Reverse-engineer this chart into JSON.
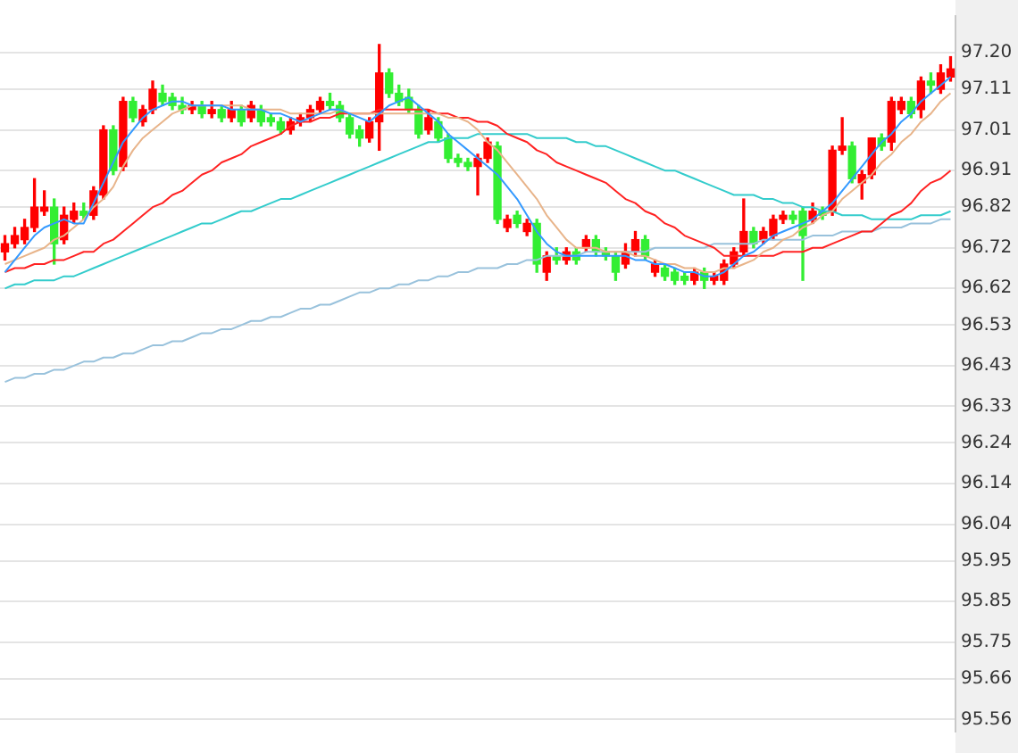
{
  "chart_data": {
    "type": "candlestick",
    "categories": [
      null,
      null,
      null,
      null,
      null,
      null,
      null,
      null,
      null,
      null,
      null,
      null,
      null,
      null,
      null,
      null,
      null,
      null,
      null,
      null,
      null,
      null,
      null,
      null,
      null,
      null,
      null,
      null,
      null,
      null,
      null,
      null,
      null,
      null,
      null,
      null,
      null,
      null,
      null,
      null,
      null,
      null,
      null,
      null,
      null,
      null,
      null,
      null,
      null,
      null,
      null,
      null,
      null,
      null,
      null,
      null,
      null,
      null,
      null,
      null,
      null,
      null,
      null,
      null,
      null,
      null,
      null,
      null,
      null,
      null,
      null,
      null,
      null,
      null,
      null,
      null,
      null,
      null,
      null,
      null,
      null,
      null,
      null,
      null,
      null,
      null,
      null,
      null,
      null,
      null,
      null,
      null,
      null,
      null,
      null,
      null,
      null
    ],
    "ohlc": [
      [
        96.71,
        96.75,
        96.69,
        96.73
      ],
      [
        96.73,
        96.77,
        96.72,
        96.75
      ],
      [
        96.74,
        96.79,
        96.73,
        96.77
      ],
      [
        96.77,
        96.89,
        96.76,
        96.82
      ],
      [
        96.81,
        96.86,
        96.8,
        96.82
      ],
      [
        96.82,
        96.84,
        96.68,
        96.73
      ],
      [
        96.74,
        96.82,
        96.73,
        96.8
      ],
      [
        96.79,
        96.83,
        96.78,
        96.81
      ],
      [
        96.81,
        96.83,
        96.79,
        96.8
      ],
      [
        96.8,
        96.87,
        96.79,
        96.86
      ],
      [
        96.85,
        97.02,
        96.84,
        97.01
      ],
      [
        97.01,
        97.02,
        96.9,
        96.91
      ],
      [
        96.92,
        97.09,
        96.91,
        97.08
      ],
      [
        97.08,
        97.09,
        97.03,
        97.04
      ],
      [
        97.03,
        97.07,
        97.02,
        97.06
      ],
      [
        97.06,
        97.13,
        97.05,
        97.11
      ],
      [
        97.1,
        97.12,
        97.07,
        97.08
      ],
      [
        97.09,
        97.1,
        97.06,
        97.07
      ],
      [
        97.07,
        97.09,
        97.05,
        97.06
      ],
      [
        97.06,
        97.08,
        97.05,
        97.07
      ],
      [
        97.07,
        97.08,
        97.04,
        97.05
      ],
      [
        97.05,
        97.08,
        97.04,
        97.06
      ],
      [
        97.06,
        97.07,
        97.03,
        97.04
      ],
      [
        97.04,
        97.08,
        97.03,
        97.06
      ],
      [
        97.06,
        97.07,
        97.02,
        97.03
      ],
      [
        97.04,
        97.08,
        97.03,
        97.07
      ],
      [
        97.06,
        97.07,
        97.02,
        97.03
      ],
      [
        97.04,
        97.05,
        97.02,
        97.03
      ],
      [
        97.03,
        97.04,
        97.0,
        97.01
      ],
      [
        97.01,
        97.04,
        97.0,
        97.03
      ],
      [
        97.03,
        97.05,
        97.02,
        97.04
      ],
      [
        97.04,
        97.07,
        97.03,
        97.06
      ],
      [
        97.06,
        97.09,
        97.05,
        97.08
      ],
      [
        97.08,
        97.1,
        97.06,
        97.07
      ],
      [
        97.07,
        97.08,
        97.03,
        97.04
      ],
      [
        97.04,
        97.05,
        96.99,
        97.0
      ],
      [
        97.01,
        97.02,
        96.97,
        96.99
      ],
      [
        96.99,
        97.04,
        96.98,
        97.03
      ],
      [
        97.03,
        97.22,
        96.96,
        97.15
      ],
      [
        97.15,
        97.16,
        97.09,
        97.1
      ],
      [
        97.1,
        97.12,
        97.07,
        97.08
      ],
      [
        97.09,
        97.11,
        97.05,
        97.06
      ],
      [
        97.06,
        97.07,
        96.99,
        97.0
      ],
      [
        97.01,
        97.06,
        97.0,
        97.04
      ],
      [
        97.03,
        97.04,
        96.98,
        96.99
      ],
      [
        96.99,
        97.0,
        96.93,
        96.94
      ],
      [
        96.94,
        96.95,
        96.92,
        96.93
      ],
      [
        96.93,
        96.94,
        96.91,
        96.92
      ],
      [
        96.92,
        96.95,
        96.85,
        96.94
      ],
      [
        96.94,
        96.99,
        96.93,
        96.98
      ],
      [
        96.97,
        96.98,
        96.78,
        96.79
      ],
      [
        96.77,
        96.8,
        96.76,
        96.79
      ],
      [
        96.8,
        96.81,
        96.77,
        96.78
      ],
      [
        96.76,
        96.79,
        96.75,
        96.78
      ],
      [
        96.78,
        96.79,
        96.66,
        96.68
      ],
      [
        96.66,
        96.71,
        96.64,
        96.7
      ],
      [
        96.7,
        96.72,
        96.68,
        96.69
      ],
      [
        96.69,
        96.72,
        96.68,
        96.71
      ],
      [
        96.71,
        96.72,
        96.68,
        96.69
      ],
      [
        96.72,
        96.75,
        96.71,
        96.74
      ],
      [
        96.74,
        96.75,
        96.7,
        96.71
      ],
      [
        96.71,
        96.72,
        96.69,
        96.7
      ],
      [
        96.7,
        96.71,
        96.64,
        96.66
      ],
      [
        96.68,
        96.73,
        96.67,
        96.71
      ],
      [
        96.71,
        96.76,
        96.7,
        96.74
      ],
      [
        96.74,
        96.75,
        96.69,
        96.7
      ],
      [
        96.66,
        96.69,
        96.65,
        96.68
      ],
      [
        96.67,
        96.68,
        96.64,
        96.65
      ],
      [
        96.66,
        96.67,
        96.63,
        96.64
      ],
      [
        96.65,
        96.66,
        96.63,
        96.64
      ],
      [
        96.64,
        96.67,
        96.63,
        96.66
      ],
      [
        96.66,
        96.67,
        96.62,
        96.64
      ],
      [
        96.64,
        96.66,
        96.63,
        96.65
      ],
      [
        96.64,
        96.69,
        96.63,
        96.68
      ],
      [
        96.68,
        96.72,
        96.67,
        96.71
      ],
      [
        96.71,
        96.84,
        96.7,
        96.76
      ],
      [
        96.76,
        96.77,
        96.72,
        96.73
      ],
      [
        96.74,
        96.77,
        96.73,
        96.76
      ],
      [
        96.75,
        96.8,
        96.74,
        96.79
      ],
      [
        96.79,
        96.81,
        96.78,
        96.8
      ],
      [
        96.8,
        96.81,
        96.78,
        96.79
      ],
      [
        96.81,
        96.82,
        96.64,
        96.75
      ],
      [
        96.79,
        96.83,
        96.78,
        96.81
      ],
      [
        96.81,
        96.82,
        96.79,
        96.8
      ],
      [
        96.81,
        96.97,
        96.8,
        96.96
      ],
      [
        96.96,
        97.04,
        96.95,
        96.97
      ],
      [
        96.97,
        96.98,
        96.88,
        96.89
      ],
      [
        96.88,
        96.91,
        96.84,
        96.9
      ],
      [
        96.9,
        96.99,
        96.89,
        96.99
      ],
      [
        96.99,
        97.0,
        96.96,
        96.97
      ],
      [
        96.98,
        97.09,
        96.96,
        97.08
      ],
      [
        97.06,
        97.09,
        97.05,
        97.08
      ],
      [
        97.08,
        97.09,
        97.04,
        97.05
      ],
      [
        97.06,
        97.14,
        97.04,
        97.13
      ],
      [
        97.13,
        97.15,
        97.1,
        97.12
      ],
      [
        97.11,
        97.17,
        97.1,
        97.15
      ],
      [
        97.14,
        97.19,
        97.13,
        97.16
      ]
    ],
    "colors": [
      "#ff0000",
      "#ff0000",
      "#ff0000",
      "#ff0000",
      "#ff0000",
      "#33ee33",
      "#ff0000",
      "#ff0000",
      "#33ee33",
      "#ff0000",
      "#ff0000",
      "#33ee33",
      "#ff0000",
      "#33ee33",
      "#ff0000",
      "#ff0000",
      "#33ee33",
      "#33ee33",
      "#33ee33",
      "#ff0000",
      "#33ee33",
      "#ff0000",
      "#33ee33",
      "#ff0000",
      "#33ee33",
      "#ff0000",
      "#33ee33",
      "#33ee33",
      "#33ee33",
      "#ff0000",
      "#ff0000",
      "#ff0000",
      "#ff0000",
      "#33ee33",
      "#33ee33",
      "#33ee33",
      "#33ee33",
      "#ff0000",
      "#ff0000",
      "#33ee33",
      "#33ee33",
      "#33ee33",
      "#33ee33",
      "#ff0000",
      "#33ee33",
      "#33ee33",
      "#33ee33",
      "#33ee33",
      "#ff0000",
      "#ff0000",
      "#33ee33",
      "#ff0000",
      "#33ee33",
      "#ff0000",
      "#33ee33",
      "#ff0000",
      "#33ee33",
      "#ff0000",
      "#33ee33",
      "#ff0000",
      "#33ee33",
      "#33ee33",
      "#33ee33",
      "#ff0000",
      "#ff0000",
      "#33ee33",
      "#ff0000",
      "#33ee33",
      "#33ee33",
      "#33ee33",
      "#ff0000",
      "#33ee33",
      "#ff0000",
      "#ff0000",
      "#ff0000",
      "#ff0000",
      "#33ee33",
      "#ff0000",
      "#ff0000",
      "#ff0000",
      "#33ee33",
      "#33ee33",
      "#ff0000",
      "#33ee33",
      "#ff0000",
      "#ff0000",
      "#33ee33",
      "#ff0000",
      "#ff0000",
      "#33ee33",
      "#ff0000",
      "#ff0000",
      "#33ee33",
      "#ff0000",
      "#33ee33",
      "#ff0000",
      "#ff0000"
    ],
    "series": [
      {
        "type": "line",
        "color": "#99c2dc",
        "values": [
          96.39,
          96.4,
          96.4,
          96.41,
          96.41,
          96.42,
          96.42,
          96.43,
          96.44,
          96.44,
          96.45,
          96.45,
          96.46,
          96.46,
          96.47,
          96.48,
          96.48,
          96.49,
          96.49,
          96.5,
          96.51,
          96.51,
          96.52,
          96.52,
          96.53,
          96.54,
          96.54,
          96.55,
          96.55,
          96.56,
          96.57,
          96.57,
          96.58,
          96.58,
          96.59,
          96.6,
          96.61,
          96.61,
          96.62,
          96.62,
          96.63,
          96.63,
          96.64,
          96.64,
          96.65,
          96.65,
          96.66,
          96.66,
          96.67,
          96.67,
          96.67,
          96.68,
          96.68,
          96.69,
          96.69,
          96.7,
          96.7,
          96.7,
          96.7,
          96.71,
          96.71,
          96.71,
          96.71,
          96.71,
          96.71,
          96.71,
          96.72,
          96.72,
          96.72,
          96.72,
          96.72,
          96.72,
          96.73,
          96.73,
          96.73,
          96.73,
          96.73,
          96.74,
          96.74,
          96.74,
          96.74,
          96.74,
          96.75,
          96.75,
          96.75,
          96.76,
          96.76,
          96.76,
          96.76,
          96.77,
          96.77,
          96.77,
          96.78,
          96.78,
          96.78,
          96.79,
          96.79
        ]
      },
      {
        "type": "line",
        "color": "#33cccc",
        "values": [
          96.62,
          96.63,
          96.63,
          96.64,
          96.64,
          96.64,
          96.65,
          96.65,
          96.66,
          96.67,
          96.68,
          96.69,
          96.7,
          96.71,
          96.72,
          96.73,
          96.74,
          96.75,
          96.76,
          96.77,
          96.78,
          96.78,
          96.79,
          96.8,
          96.81,
          96.81,
          96.82,
          96.83,
          96.84,
          96.84,
          96.85,
          96.86,
          96.87,
          96.88,
          96.89,
          96.9,
          96.91,
          96.92,
          96.93,
          96.94,
          96.95,
          96.96,
          96.97,
          96.98,
          96.98,
          96.99,
          96.99,
          96.99,
          97.0,
          97.0,
          97.0,
          97.0,
          97.0,
          97.0,
          96.99,
          96.99,
          96.99,
          96.99,
          96.98,
          96.98,
          96.97,
          96.97,
          96.96,
          96.95,
          96.94,
          96.93,
          96.92,
          96.91,
          96.91,
          96.9,
          96.89,
          96.88,
          96.87,
          96.86,
          96.85,
          96.85,
          96.85,
          96.84,
          96.84,
          96.83,
          96.83,
          96.82,
          96.82,
          96.81,
          96.81,
          96.8,
          96.8,
          96.8,
          96.79,
          96.79,
          96.79,
          96.79,
          96.79,
          96.8,
          96.8,
          96.8,
          96.81
        ]
      },
      {
        "type": "line",
        "color": "#ff2222",
        "values": [
          96.66,
          96.67,
          96.67,
          96.68,
          96.68,
          96.69,
          96.69,
          96.7,
          96.71,
          96.71,
          96.73,
          96.74,
          96.76,
          96.78,
          96.8,
          96.82,
          96.83,
          96.85,
          96.86,
          96.88,
          96.9,
          96.91,
          96.93,
          96.94,
          96.95,
          96.97,
          96.98,
          96.99,
          97.0,
          97.02,
          97.03,
          97.03,
          97.04,
          97.04,
          97.05,
          97.05,
          97.05,
          97.05,
          97.06,
          97.06,
          97.06,
          97.06,
          97.06,
          97.06,
          97.05,
          97.05,
          97.04,
          97.04,
          97.03,
          97.03,
          97.02,
          97.0,
          96.99,
          96.98,
          96.96,
          96.95,
          96.93,
          96.92,
          96.91,
          96.9,
          96.89,
          96.88,
          96.86,
          96.84,
          96.83,
          96.81,
          96.8,
          96.78,
          96.77,
          96.75,
          96.74,
          96.73,
          96.72,
          96.7,
          96.7,
          96.7,
          96.7,
          96.7,
          96.7,
          96.71,
          96.71,
          96.71,
          96.72,
          96.72,
          96.73,
          96.74,
          96.75,
          96.76,
          96.76,
          96.78,
          96.8,
          96.81,
          96.83,
          96.86,
          96.88,
          96.89,
          96.91
        ]
      },
      {
        "type": "line",
        "color": "#e8b48a",
        "values": [
          96.68,
          96.69,
          96.7,
          96.71,
          96.72,
          96.74,
          96.75,
          96.77,
          96.79,
          96.82,
          96.84,
          96.87,
          96.92,
          96.96,
          96.99,
          97.01,
          97.03,
          97.05,
          97.06,
          97.07,
          97.07,
          97.07,
          97.07,
          97.07,
          97.07,
          97.06,
          97.06,
          97.06,
          97.06,
          97.05,
          97.05,
          97.05,
          97.05,
          97.05,
          97.06,
          97.05,
          97.05,
          97.05,
          97.05,
          97.05,
          97.05,
          97.05,
          97.05,
          97.05,
          97.05,
          97.04,
          97.04,
          97.03,
          97.01,
          96.98,
          96.96,
          96.93,
          96.9,
          96.87,
          96.84,
          96.8,
          96.77,
          96.74,
          96.72,
          96.72,
          96.72,
          96.71,
          96.71,
          96.71,
          96.7,
          96.7,
          96.69,
          96.68,
          96.68,
          96.67,
          96.67,
          96.66,
          96.66,
          96.67,
          96.67,
          96.68,
          96.69,
          96.71,
          96.72,
          96.74,
          96.75,
          96.77,
          96.78,
          96.8,
          96.81,
          96.84,
          96.86,
          96.88,
          96.9,
          96.93,
          96.95,
          96.98,
          97.0,
          97.03,
          97.05,
          97.08,
          97.1
        ]
      },
      {
        "type": "line",
        "color": "#3399ff",
        "values": [
          96.66,
          96.69,
          96.72,
          96.75,
          96.77,
          96.78,
          96.79,
          96.78,
          96.78,
          96.83,
          96.88,
          96.93,
          96.98,
          97.01,
          97.04,
          97.06,
          97.07,
          97.08,
          97.08,
          97.07,
          97.07,
          97.07,
          97.07,
          97.06,
          97.06,
          97.06,
          97.06,
          97.05,
          97.05,
          97.04,
          97.03,
          97.04,
          97.05,
          97.06,
          97.06,
          97.05,
          97.04,
          97.03,
          97.05,
          97.07,
          97.08,
          97.09,
          97.07,
          97.05,
          97.03,
          97.0,
          96.98,
          96.96,
          96.94,
          96.92,
          96.9,
          96.87,
          96.84,
          96.8,
          96.76,
          96.73,
          96.71,
          96.7,
          96.7,
          96.7,
          96.7,
          96.7,
          96.7,
          96.7,
          96.69,
          96.69,
          96.68,
          96.68,
          96.67,
          96.66,
          96.66,
          96.65,
          96.65,
          96.66,
          96.68,
          96.7,
          96.71,
          96.73,
          96.75,
          96.76,
          96.77,
          96.78,
          96.79,
          96.81,
          96.83,
          96.86,
          96.89,
          96.92,
          96.95,
          96.98,
          97.0,
          97.03,
          97.05,
          97.08,
          97.1,
          97.12,
          97.14
        ]
      }
    ],
    "ylim": [
      95.53,
      97.29
    ],
    "yticks": [
      {
        "value": 97.2,
        "label": "97.20"
      },
      {
        "value": 97.11,
        "label": "97.11"
      },
      {
        "value": 97.01,
        "label": "97.01"
      },
      {
        "value": 96.91,
        "label": "96.91"
      },
      {
        "value": 96.82,
        "label": "96.82"
      },
      {
        "value": 96.72,
        "label": "96.72"
      },
      {
        "value": 96.62,
        "label": "96.62"
      },
      {
        "value": 96.53,
        "label": "96.53"
      },
      {
        "value": 96.43,
        "label": "96.43"
      },
      {
        "value": 96.33,
        "label": "96.33"
      },
      {
        "value": 96.24,
        "label": "96.24"
      },
      {
        "value": 96.14,
        "label": "96.14"
      },
      {
        "value": 96.04,
        "label": "96.04"
      },
      {
        "value": 95.95,
        "label": "95.95"
      },
      {
        "value": 95.85,
        "label": "95.85"
      },
      {
        "value": 95.75,
        "label": "95.75"
      },
      {
        "value": 95.66,
        "label": "95.66"
      },
      {
        "value": 95.56,
        "label": "95.56"
      }
    ],
    "grid": "y",
    "legend": false,
    "tick_labels": "y"
  }
}
